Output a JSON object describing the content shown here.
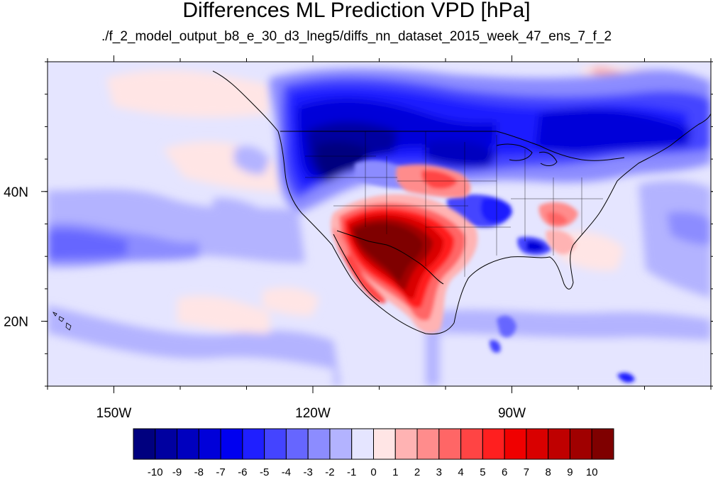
{
  "title": "Differences ML Prediction VPD [hPa]",
  "subtitle": "./f_2_model_output_b8_e_30_d3_lneg5/diffs_nn_dataset_2015_week_47_ens_7_f_2",
  "map": {
    "lon_range": [
      -160,
      -60
    ],
    "lat_range": [
      10,
      60
    ],
    "lon_ticks": [
      {
        "value": -150,
        "label": "150W"
      },
      {
        "value": -120,
        "label": "120W"
      },
      {
        "value": -90,
        "label": "90W"
      }
    ],
    "lat_ticks": [
      {
        "value": 40,
        "label": "40N"
      },
      {
        "value": 20,
        "label": "20N"
      }
    ]
  },
  "colorbar": {
    "colors": [
      "#00007f",
      "#0000a0",
      "#0000bf",
      "#0000d9",
      "#0000f0",
      "#1f1fff",
      "#4444ff",
      "#6666ff",
      "#8c8cff",
      "#b3b3ff",
      "#e5e5ff",
      "#ffe5e5",
      "#ffb3b3",
      "#ff8c8c",
      "#ff6666",
      "#ff4444",
      "#ff1f1f",
      "#f00000",
      "#d90000",
      "#bf0000",
      "#a00000",
      "#7f0000"
    ],
    "labels": [
      "-10",
      "-9",
      "-8",
      "-7",
      "-6",
      "-5",
      "-4",
      "-3",
      "-2",
      "-1",
      "0",
      "1",
      "2",
      "3",
      "4",
      "5",
      "6",
      "7",
      "8",
      "9",
      "10"
    ]
  }
}
